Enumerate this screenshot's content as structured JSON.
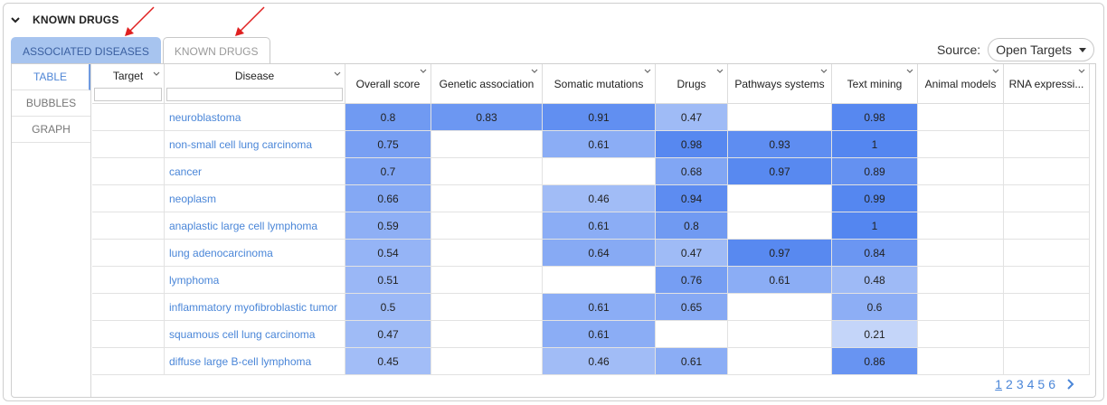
{
  "panel": {
    "title": "KNOWN DRUGS"
  },
  "tabs": [
    {
      "label": "ASSOCIATED DISEASES",
      "active": true
    },
    {
      "label": "KNOWN DRUGS",
      "active": false
    }
  ],
  "source": {
    "label": "Source:",
    "value": "Open Targets"
  },
  "views": [
    {
      "label": "TABLE",
      "active": true
    },
    {
      "label": "BUBBLES",
      "active": false
    },
    {
      "label": "GRAPH",
      "active": false
    }
  ],
  "columns": [
    "Target",
    "Disease",
    "Overall score",
    "Genetic association",
    "Somatic mutations",
    "Drugs",
    "Pathways systems",
    "Text mining",
    "Animal models",
    "RNA expressi..."
  ],
  "rows": [
    {
      "disease": "neuroblastoma",
      "scores": [
        "0.8",
        "0.83",
        "0.91",
        "0.47",
        "",
        "0.98",
        "",
        ""
      ]
    },
    {
      "disease": "non-small cell lung carcinoma",
      "scores": [
        "0.75",
        "",
        "0.61",
        "0.98",
        "0.93",
        "1",
        "",
        ""
      ]
    },
    {
      "disease": "cancer",
      "scores": [
        "0.7",
        "",
        "",
        "0.68",
        "0.97",
        "0.89",
        "",
        ""
      ]
    },
    {
      "disease": "neoplasm",
      "scores": [
        "0.66",
        "",
        "0.46",
        "0.94",
        "",
        "0.99",
        "",
        ""
      ]
    },
    {
      "disease": "anaplastic large cell lymphoma",
      "scores": [
        "0.59",
        "",
        "0.61",
        "0.8",
        "",
        "1",
        "",
        ""
      ]
    },
    {
      "disease": "lung adenocarcinoma",
      "scores": [
        "0.54",
        "",
        "0.64",
        "0.47",
        "0.97",
        "0.84",
        "",
        ""
      ]
    },
    {
      "disease": "lymphoma",
      "scores": [
        "0.51",
        "",
        "",
        "0.76",
        "0.61",
        "0.48",
        "",
        ""
      ]
    },
    {
      "disease": "inflammatory myofibroblastic tumor",
      "scores": [
        "0.5",
        "",
        "0.61",
        "0.65",
        "",
        "0.6",
        "",
        ""
      ]
    },
    {
      "disease": "squamous cell lung carcinoma",
      "scores": [
        "0.47",
        "",
        "0.61",
        "",
        "",
        "0.21",
        "",
        ""
      ]
    },
    {
      "disease": "diffuse large B-cell lymphoma",
      "scores": [
        "0.45",
        "",
        "0.46",
        "0.61",
        "",
        "0.86",
        "",
        ""
      ]
    }
  ],
  "pagination": {
    "pages": [
      "1",
      "2",
      "3",
      "4",
      "5",
      "6"
    ],
    "current": "1"
  },
  "colors": {
    "accent": "#4a86d8",
    "tab_active": "#a7c4ef",
    "arrow": "#e02020"
  }
}
